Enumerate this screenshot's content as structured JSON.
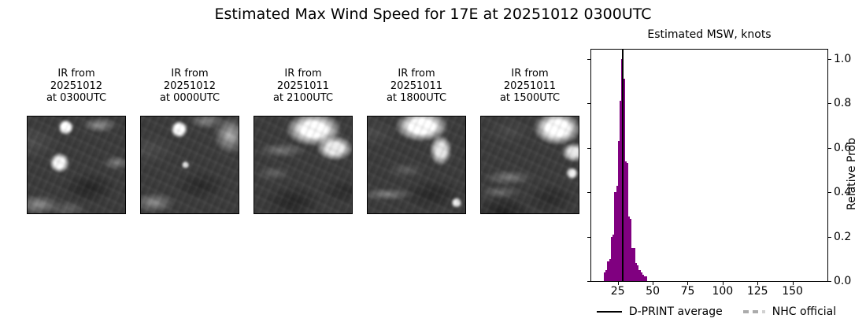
{
  "title": "Estimated Max Wind Speed for 17E at 20251012 0300UTC",
  "panels": [
    {
      "caption_lines": [
        "IR from",
        "20251012",
        "at 0300UTC"
      ]
    },
    {
      "caption_lines": [
        "IR from",
        "20251012",
        "at 0000UTC"
      ]
    },
    {
      "caption_lines": [
        "IR from",
        "20251011",
        "at 2100UTC"
      ]
    },
    {
      "caption_lines": [
        "IR from",
        "20251011",
        "at 1800UTC"
      ]
    },
    {
      "caption_lines": [
        "IR from",
        "20251011",
        "at 1500UTC"
      ]
    }
  ],
  "chart_data": {
    "type": "bar",
    "title": "Estimated MSW, knots",
    "xlabel": "",
    "ylabel": "Relative Prob",
    "xlim": [
      6,
      175
    ],
    "ylim": [
      0,
      1.042
    ],
    "xticks": [
      25,
      50,
      75,
      100,
      125,
      150
    ],
    "yticks": [
      0.0,
      0.2,
      0.4,
      0.6,
      0.8,
      1.0
    ],
    "grid": false,
    "legend_position": "below",
    "bar_color": "#800080",
    "bars": [
      {
        "x": 15.0,
        "w": 1.25,
        "h": 0.04
      },
      {
        "x": 16.25,
        "w": 1.25,
        "h": 0.05
      },
      {
        "x": 17.5,
        "w": 1.25,
        "h": 0.09
      },
      {
        "x": 18.75,
        "w": 1.25,
        "h": 0.1
      },
      {
        "x": 20.0,
        "w": 1.25,
        "h": 0.2
      },
      {
        "x": 21.25,
        "w": 1.25,
        "h": 0.21
      },
      {
        "x": 22.5,
        "w": 1.25,
        "h": 0.4
      },
      {
        "x": 23.75,
        "w": 1.25,
        "h": 0.43
      },
      {
        "x": 25.0,
        "w": 1.25,
        "h": 0.63
      },
      {
        "x": 26.25,
        "w": 1.25,
        "h": 0.81
      },
      {
        "x": 27.5,
        "w": 1.25,
        "h": 1.0
      },
      {
        "x": 28.75,
        "w": 1.25,
        "h": 0.91
      },
      {
        "x": 30.0,
        "w": 1.25,
        "h": 0.54
      },
      {
        "x": 31.25,
        "w": 1.25,
        "h": 0.53
      },
      {
        "x": 32.5,
        "w": 1.25,
        "h": 0.29
      },
      {
        "x": 33.75,
        "w": 1.25,
        "h": 0.28
      },
      {
        "x": 35.0,
        "w": 1.25,
        "h": 0.15
      },
      {
        "x": 36.25,
        "w": 1.25,
        "h": 0.15
      },
      {
        "x": 37.5,
        "w": 1.25,
        "h": 0.08
      },
      {
        "x": 38.75,
        "w": 1.25,
        "h": 0.07
      },
      {
        "x": 40.0,
        "w": 1.25,
        "h": 0.05
      },
      {
        "x": 41.25,
        "w": 1.25,
        "h": 0.04
      },
      {
        "x": 42.5,
        "w": 1.25,
        "h": 0.03
      },
      {
        "x": 43.75,
        "w": 1.25,
        "h": 0.02
      },
      {
        "x": 45.0,
        "w": 1.25,
        "h": 0.02
      }
    ],
    "average_line": {
      "x": 28.6,
      "color": "#000000",
      "label": "D-PRINT average"
    },
    "nhc_official": {
      "color": "#ababab",
      "label": "NHC official"
    }
  }
}
